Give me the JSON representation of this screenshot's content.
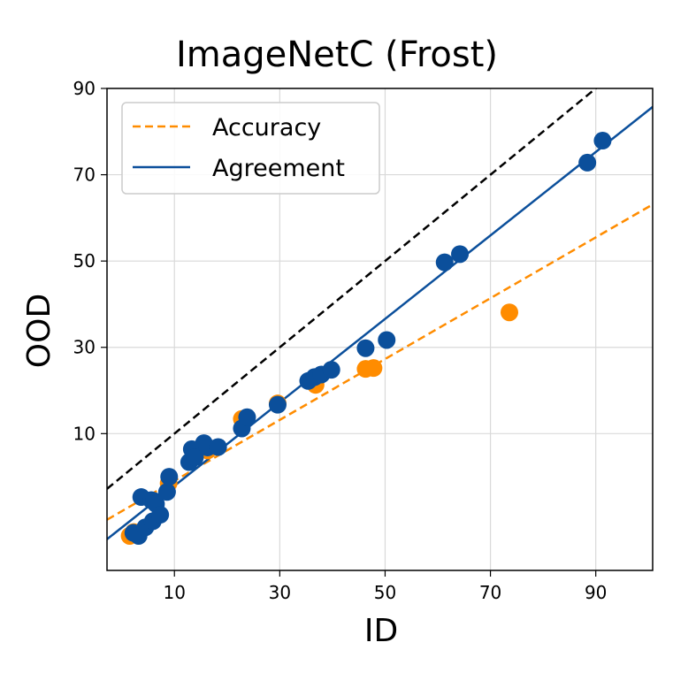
{
  "chart_data": {
    "type": "scatter",
    "title": "ImageNetC (Frost)",
    "xlabel": "ID",
    "ylabel": "OOD",
    "xticks": [
      "10",
      "30",
      "50",
      "70",
      "90"
    ],
    "yticks": [
      "10",
      "30",
      "50",
      "70",
      "90"
    ],
    "xtick_values": [
      10,
      30,
      50,
      70,
      90
    ],
    "ytick_values": [
      10,
      30,
      50,
      70,
      90
    ],
    "grid": true,
    "legend_position": "top-left",
    "series": [
      {
        "name": "Accuracy",
        "kind": "points+fit",
        "color": "#ff8c00",
        "line_style": "dashed",
        "x": [
          1.5,
          2.3,
          8.9,
          14.8,
          16.3,
          22.8,
          29.6,
          36.8,
          46.3,
          47.8,
          73.6
        ],
        "y": [
          -13.7,
          -12.8,
          -1.5,
          6.2,
          6.1,
          13.4,
          17.0,
          21.3,
          25.0,
          25.2,
          38.1
        ]
      },
      {
        "name": "Agreement",
        "kind": "points+fit",
        "color": "#0b4f9b",
        "line_style": "solid",
        "x": [
          2.2,
          3.2,
          3.7,
          4.5,
          5.6,
          5.9,
          6.1,
          6.5,
          7.3,
          8.6,
          9.0,
          12.8,
          13.3,
          13.9,
          15.6,
          16.3,
          18.3,
          22.8,
          23.8,
          29.6,
          35.4,
          36.6,
          37.9,
          39.8,
          46.3,
          50.3,
          61.3,
          64.2,
          88.4,
          91.3
        ],
        "y": [
          -13.0,
          -13.7,
          -4.7,
          -11.7,
          -5.4,
          -10.3,
          -5.6,
          -6.3,
          -8.8,
          -3.5,
          0.0,
          3.4,
          6.4,
          4.5,
          7.8,
          6.8,
          6.9,
          11.2,
          13.8,
          16.7,
          22.2,
          23.1,
          23.7,
          24.8,
          29.8,
          31.7,
          49.7,
          51.6,
          72.8,
          77.9
        ]
      }
    ],
    "reference_line": {
      "style": "dashed",
      "color": "#000000"
    },
    "xlim": [
      -2.8,
      100.8
    ],
    "ylim": [
      -21.7,
      90.0
    ]
  }
}
